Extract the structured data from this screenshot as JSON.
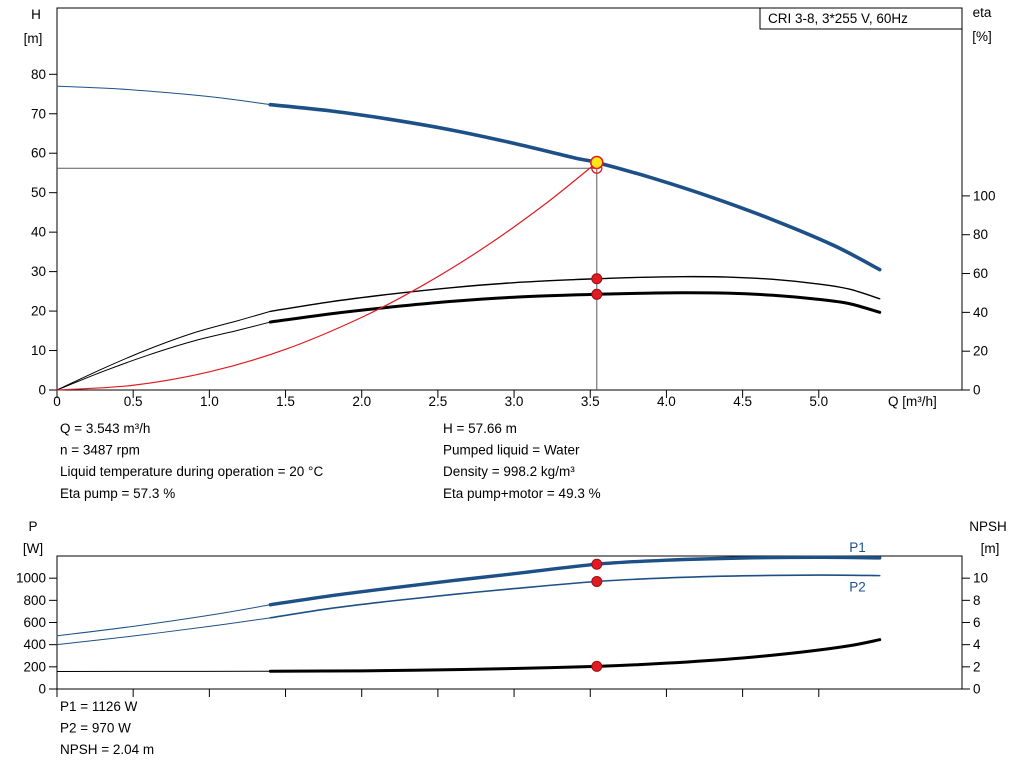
{
  "colors": {
    "blue": "#1d5087",
    "black": "#000000",
    "red": "#e11b22",
    "red_dark": "#9b0f14",
    "yellow": "#ffe81a",
    "crosshair": "#5a5a5a"
  },
  "annotations": {
    "top_left": [
      "Q = 3.543 m³/h",
      "n = 3487 rpm",
      "Liquid temperature during operation = 20 °C",
      "Eta pump = 57.3 %"
    ],
    "top_right": [
      "H = 57.66 m",
      "Pumped liquid = Water",
      "Density = 998.2 kg/m³",
      "Eta pump+motor = 49.3 %"
    ],
    "bottom": [
      "P1 = 1126 W",
      "P2 = 970 W",
      "NPSH = 2.04 m"
    ]
  },
  "chart_data": [
    {
      "type": "line",
      "title": "CRI 3-8, 3*255 V, 60Hz",
      "x_axis": {
        "label": "Q [m³/h]",
        "min": 0,
        "max": 5.94,
        "ticks": [
          0,
          0.5,
          1,
          1.5,
          2,
          2.5,
          3,
          3.5,
          4,
          4.5,
          5
        ],
        "tick_labels": [
          "0",
          "0.5",
          "1.0",
          "1.5",
          "2.0",
          "2.5",
          "3.0",
          "3.5",
          "4.0",
          "4.5",
          "5.0"
        ]
      },
      "y_left": {
        "label": "H",
        "unit": "[m]",
        "min": 0,
        "max": 96.8,
        "ticks": [
          0,
          10,
          20,
          30,
          40,
          50,
          60,
          70,
          80
        ]
      },
      "y_right": {
        "label": "eta",
        "unit": "[%]",
        "min": 0,
        "max": 196.8,
        "ticks": [
          0,
          20,
          40,
          60,
          80,
          100
        ]
      },
      "crosshair": {
        "x": 3.543,
        "y_top": 57.66,
        "h_line_y": 56.2
      },
      "series": [
        {
          "id": "hq-ext",
          "name": "H-Q curve (extrapolated)",
          "axis": "left",
          "color": "blue",
          "width": 1,
          "points": [
            [
              0,
              77
            ],
            [
              0.4,
              76.3
            ],
            [
              0.8,
              75.1
            ],
            [
              1.1,
              73.9
            ],
            [
              1.4,
              72.3
            ]
          ]
        },
        {
          "id": "hq",
          "name": "H-Q curve",
          "axis": "left",
          "color": "blue",
          "width": 3.6,
          "points": [
            [
              1.4,
              72.3
            ],
            [
              1.8,
              70.7
            ],
            [
              2.2,
              68.5
            ],
            [
              2.6,
              65.8
            ],
            [
              3.0,
              62.5
            ],
            [
              3.4,
              58.8
            ],
            [
              3.543,
              57.66
            ],
            [
              3.9,
              53.8
            ],
            [
              4.3,
              48.8
            ],
            [
              4.7,
              43.1
            ],
            [
              5.1,
              36.6
            ],
            [
              5.4,
              30.5
            ]
          ]
        },
        {
          "id": "eta-pump-ext",
          "name": "Eta pump (extrapolated)",
          "axis": "right",
          "color": "black",
          "width": 1,
          "points": [
            [
              0,
              0
            ],
            [
              0.3,
              11
            ],
            [
              0.6,
              21
            ],
            [
              0.9,
              29.5
            ],
            [
              1.2,
              36
            ],
            [
              1.4,
              40.5
            ]
          ]
        },
        {
          "id": "eta-pump",
          "name": "Eta pump",
          "axis": "right",
          "color": "black",
          "width": 1.4,
          "points": [
            [
              1.4,
              40.5
            ],
            [
              1.8,
              45.5
            ],
            [
              2.2,
              49.5
            ],
            [
              2.6,
              52.8
            ],
            [
              3.0,
              55.3
            ],
            [
              3.4,
              56.9
            ],
            [
              3.543,
              57.3
            ],
            [
              3.8,
              58
            ],
            [
              4.1,
              58.4
            ],
            [
              4.4,
              58.2
            ],
            [
              4.7,
              57
            ],
            [
              5.0,
              54.6
            ],
            [
              5.2,
              52
            ],
            [
              5.4,
              47
            ]
          ]
        },
        {
          "id": "eta-pm-ext",
          "name": "Eta pump+motor (extrapolated)",
          "axis": "right",
          "color": "black",
          "width": 1,
          "points": [
            [
              0,
              0
            ],
            [
              0.3,
              9.5
            ],
            [
              0.6,
              18
            ],
            [
              0.9,
              25.3
            ],
            [
              1.2,
              31
            ],
            [
              1.4,
              35
            ]
          ]
        },
        {
          "id": "eta-pm",
          "name": "Eta pump+motor",
          "axis": "right",
          "color": "black",
          "width": 3,
          "points": [
            [
              1.4,
              35
            ],
            [
              1.8,
              39.3
            ],
            [
              2.2,
              42.8
            ],
            [
              2.6,
              45.7
            ],
            [
              3.0,
              47.8
            ],
            [
              3.4,
              49
            ],
            [
              3.543,
              49.3
            ],
            [
              3.8,
              49.8
            ],
            [
              4.1,
              50.1
            ],
            [
              4.4,
              49.9
            ],
            [
              4.7,
              48.8
            ],
            [
              5.0,
              46.7
            ],
            [
              5.2,
              44.5
            ],
            [
              5.4,
              40
            ]
          ]
        },
        {
          "id": "system",
          "name": "System curve",
          "axis": "left",
          "color": "red",
          "width": 1.2,
          "points": [
            [
              0,
              0
            ],
            [
              0.5,
              1.2
            ],
            [
              1.0,
              4.6
            ],
            [
              1.5,
              10.3
            ],
            [
              2.0,
              18.4
            ],
            [
              2.4,
              26.5
            ],
            [
              2.8,
              36
            ],
            [
              3.2,
              47
            ],
            [
              3.543,
              57.66
            ]
          ]
        }
      ],
      "markers": [
        {
          "kind": "open",
          "x": 3.543,
          "y": 56.2,
          "axis": "left"
        },
        {
          "kind": "duty",
          "x": 3.543,
          "y": 57.66,
          "axis": "left"
        },
        {
          "kind": "dot",
          "x": 3.543,
          "y": 57.3,
          "axis": "right"
        },
        {
          "kind": "dot",
          "x": 3.543,
          "y": 49.3,
          "axis": "right"
        }
      ]
    },
    {
      "type": "line",
      "title": "",
      "x_axis": {
        "label": "",
        "min": 0,
        "max": 5.94,
        "ticks": [
          0,
          0.5,
          1,
          1.5,
          2,
          2.5,
          3,
          3.5,
          4,
          4.5,
          5
        ],
        "tick_labels": null
      },
      "y_left": {
        "label": "P",
        "unit": "[W]",
        "min": 0,
        "max": 1200,
        "ticks": [
          0,
          200,
          400,
          600,
          800,
          1000
        ]
      },
      "y_right": {
        "label": "NPSH",
        "unit": "[m]",
        "min": 0,
        "max": 12,
        "ticks": [
          0,
          2,
          4,
          6,
          8,
          10
        ]
      },
      "series": [
        {
          "id": "p1-ext",
          "name": "P1 (extrapolated)",
          "axis": "left",
          "color": "blue",
          "width": 1,
          "points": [
            [
              0,
              480
            ],
            [
              0.5,
              565
            ],
            [
              1.0,
              665
            ],
            [
              1.4,
              760
            ]
          ]
        },
        {
          "id": "p1",
          "name": "P1",
          "axis": "left",
          "color": "blue",
          "width": 3.4,
          "points": [
            [
              1.4,
              760
            ],
            [
              1.8,
              842
            ],
            [
              2.2,
              912
            ],
            [
              2.6,
              978
            ],
            [
              3.0,
              1040
            ],
            [
              3.543,
              1126
            ],
            [
              4.0,
              1162
            ],
            [
              4.5,
              1182
            ],
            [
              5.0,
              1188
            ],
            [
              5.4,
              1183
            ]
          ]
        },
        {
          "id": "p2-ext",
          "name": "P2 (extrapolated)",
          "axis": "left",
          "color": "blue",
          "width": 1,
          "points": [
            [
              0,
              400
            ],
            [
              0.5,
              478
            ],
            [
              1.0,
              565
            ],
            [
              1.4,
              642
            ]
          ]
        },
        {
          "id": "p2",
          "name": "P2",
          "axis": "left",
          "color": "blue",
          "width": 1.6,
          "points": [
            [
              1.4,
              642
            ],
            [
              1.8,
              728
            ],
            [
              2.2,
              795
            ],
            [
              2.6,
              853
            ],
            [
              3.0,
              906
            ],
            [
              3.543,
              970
            ],
            [
              4.0,
              1002
            ],
            [
              4.5,
              1021
            ],
            [
              5.0,
              1028
            ],
            [
              5.4,
              1023
            ]
          ]
        },
        {
          "id": "npsh-ext",
          "name": "NPSH (extrapolated)",
          "axis": "right",
          "color": "black",
          "width": 1,
          "points": [
            [
              0,
              1.58
            ],
            [
              0.7,
              1.59
            ],
            [
              1.4,
              1.6
            ]
          ]
        },
        {
          "id": "npsh",
          "name": "NPSH",
          "axis": "right",
          "color": "black",
          "width": 3,
          "points": [
            [
              1.4,
              1.6
            ],
            [
              2.0,
              1.64
            ],
            [
              2.5,
              1.72
            ],
            [
              3.0,
              1.85
            ],
            [
              3.543,
              2.04
            ],
            [
              4.0,
              2.33
            ],
            [
              4.5,
              2.8
            ],
            [
              4.9,
              3.35
            ],
            [
              5.2,
              3.9
            ],
            [
              5.4,
              4.45
            ]
          ]
        }
      ],
      "labels": [
        {
          "text": "P1",
          "x": 5.2,
          "y": 1238,
          "color": "blue"
        },
        {
          "text": "P2",
          "x": 5.2,
          "y": 878,
          "color": "blue"
        }
      ],
      "markers": [
        {
          "kind": "dot",
          "x": 3.543,
          "y": 1126,
          "axis": "left"
        },
        {
          "kind": "dot",
          "x": 3.543,
          "y": 970,
          "axis": "left"
        },
        {
          "kind": "dot",
          "x": 3.543,
          "y": 2.04,
          "axis": "right"
        }
      ]
    }
  ]
}
